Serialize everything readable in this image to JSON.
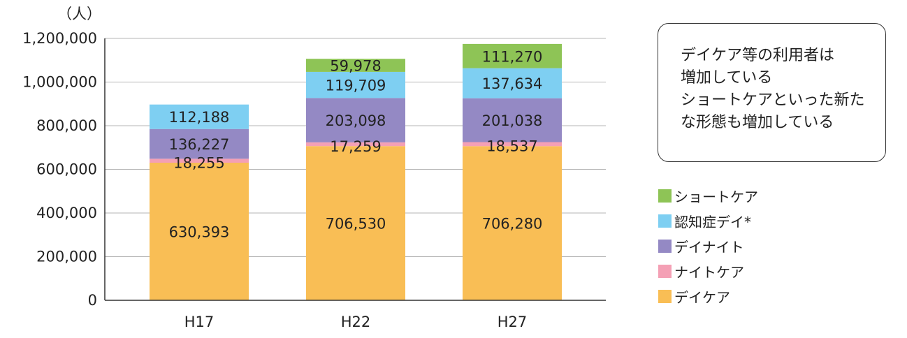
{
  "chart_data": {
    "type": "bar",
    "stacked": true,
    "categories": [
      "H17",
      "H22",
      "H27"
    ],
    "series": [
      {
        "name": "デイケア",
        "color": "#f9be55",
        "values": [
          630393,
          706530,
          706280
        ]
      },
      {
        "name": "ナイトケア",
        "color": "#f4a0b5",
        "values": [
          18255,
          17259,
          18537
        ]
      },
      {
        "name": "デイナイト",
        "color": "#9489c4",
        "values": [
          136227,
          203098,
          201038
        ]
      },
      {
        "name": "認知症デイ*",
        "color": "#7ecff2",
        "values": [
          112188,
          119709,
          137634
        ]
      },
      {
        "name": "ショートケア",
        "color": "#8ec456",
        "values": [
          0,
          59978,
          111270
        ]
      }
    ],
    "data_labels": [
      [
        "630,393",
        "706,530",
        "706,280"
      ],
      [
        "18,255",
        "17,259",
        "18,537"
      ],
      [
        "136,227",
        "203,098",
        "201,038"
      ],
      [
        "112,188",
        "119,709",
        "137,634"
      ],
      [
        "",
        "59,978",
        "111,270"
      ]
    ],
    "yunit": "（人）",
    "ylim": [
      0,
      1200000
    ],
    "yticks": [
      "0",
      "200,000",
      "400,000",
      "600,000",
      "800,000",
      "1,000,000",
      "1,200,000"
    ],
    "grid": true,
    "legend_position": "right"
  },
  "callout": {
    "lines": [
      "デイケア等の利用者は",
      "増加している",
      "ショートケアといった新た",
      "な形態も増加している"
    ]
  },
  "legend": {
    "items": [
      {
        "label": "ショートケア",
        "color": "#8ec456"
      },
      {
        "label": "認知症デイ*",
        "color": "#7ecff2"
      },
      {
        "label": "デイナイト",
        "color": "#9489c4"
      },
      {
        "label": "ナイトケア",
        "color": "#f4a0b5"
      },
      {
        "label": "デイケア",
        "color": "#f9be55"
      }
    ]
  }
}
